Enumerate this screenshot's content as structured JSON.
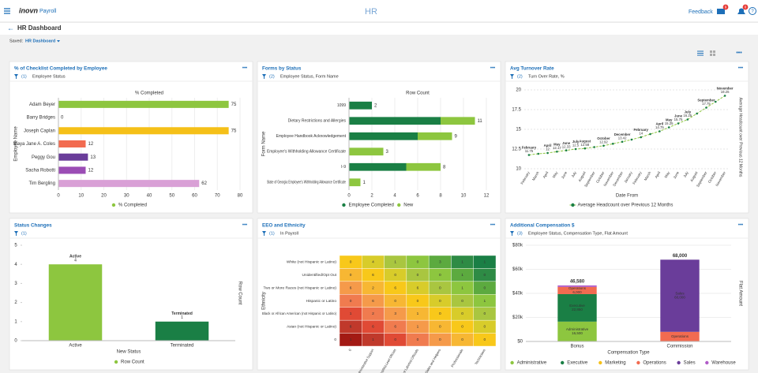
{
  "header": {
    "logo": "inovn",
    "product": "Payroll",
    "title": "HR",
    "feedback": "Feedback",
    "mail_badge": 9,
    "alert_badge": 0
  },
  "page": {
    "title": "HR Dashboard",
    "saved_label": "Saved:",
    "saved_value": "HR Dashboard"
  },
  "chart_data": [
    {
      "type": "hbar",
      "title": "% of Checklist Completed by Employee",
      "filter_count": "(1)",
      "filter": "Employee Status",
      "x_label": "% Completed",
      "y_label": "Employee Name",
      "series_name": "% Completed",
      "legend_color": "#8dc63f",
      "categories": [
        "Adam Beyer",
        "Barry Bridges",
        "Joseph Caplan",
        "Maya Jane A. Coles",
        "Peggy Gou",
        "Sacha Robotti",
        "Tim Bergling"
      ],
      "values": [
        75,
        0,
        75,
        12,
        13,
        12,
        62
      ],
      "colors": [
        "#8dc63f",
        "#8dc63f",
        "#f5c018",
        "#f26b50",
        "#6a3d9a",
        "#9b4db5",
        "#d9a0d6"
      ],
      "xlim": [
        0,
        80
      ],
      "xticks": [
        0,
        10,
        20,
        30,
        40,
        50,
        60,
        70,
        80
      ]
    },
    {
      "type": "hbar_stacked",
      "title": "Forms by Status",
      "filter_count": "(2)",
      "filter": "Employee Status, Form Name",
      "x_label": "Row Count",
      "y_label": "Form Name",
      "categories": [
        "1099",
        "Dietary Restrictions and Allergies",
        "Employee Handbook Acknowledgement",
        "Employee's Withholding Allowance Certificate",
        "I-9",
        "State of Georgia Employee's Withholding Allowance Certificate"
      ],
      "series": [
        {
          "name": "Employee Completed",
          "color": "#1a7f45",
          "values": [
            2,
            8,
            6,
            0,
            5,
            0
          ]
        },
        {
          "name": "New",
          "color": "#8dc63f",
          "values": [
            0,
            3,
            3,
            3,
            3,
            1
          ]
        }
      ],
      "totals": [
        2,
        11,
        9,
        3,
        8,
        1
      ],
      "xlim": [
        0,
        12
      ],
      "xticks": [
        0,
        2,
        4,
        6,
        8,
        10,
        12
      ]
    },
    {
      "type": "line",
      "title": "Avg Turnover Rate",
      "filter_count": "(2)",
      "filter": "Turn Over Rate, %",
      "x_label": "Date From",
      "y_label": "Average Headcount over Previous 12 Months",
      "categories": [
        "February",
        "March",
        "April",
        "May",
        "June",
        "July",
        "August",
        "September",
        "October",
        "November",
        "December",
        "January",
        "February",
        "March",
        "April",
        "May",
        "June",
        "July",
        "August",
        "September",
        "October",
        "November"
      ],
      "series": [
        {
          "name": "Average Headcount over Previous 12 Months",
          "color": "#8dc63f",
          "marker_color": "#1a7f45",
          "values": [
            11.75,
            11.9,
            12,
            12.17,
            12.33,
            12.5,
            12.58,
            12.75,
            12.92,
            13.17,
            13.42,
            13.7,
            14,
            14.4,
            14.75,
            15.25,
            15.75,
            16.25,
            17,
            17.75,
            18.5,
            19.26
          ],
          "value_labels": [
            "11.75",
            null,
            "12",
            "12.17",
            "12.33",
            "12.5",
            "12.58",
            null,
            "12.92",
            null,
            "13.42",
            null,
            "14",
            null,
            "14.75",
            "15.25",
            "15.75",
            "16.25",
            null,
            "17.75",
            null,
            "19.26"
          ]
        }
      ],
      "ylim": [
        10,
        20
      ],
      "yticks": [
        10,
        12.5,
        15,
        17.5,
        20
      ]
    },
    {
      "type": "bar",
      "title": "Status Changes",
      "filter_count": "(1)",
      "x_label": "New Status",
      "y_label": "Row Count",
      "series_name": "Row Count",
      "legend_color": "#8dc63f",
      "categories": [
        "Active",
        "Terminated"
      ],
      "values": [
        4,
        1
      ],
      "colors": [
        "#8dc63f",
        "#1a7f45"
      ],
      "ylim": [
        0,
        5
      ],
      "yticks": [
        0,
        1,
        2,
        3,
        4,
        5
      ]
    },
    {
      "type": "heatmap",
      "title": "EEO and Ethnicity",
      "filter_count": "(1)",
      "filter": "In Payroll",
      "y_label": "Ethnicity",
      "rows": [
        "White (not Hispanic or Latino)",
        "Unidentified/Opt Out",
        "Two or More Races (not Hispanic or Latino)",
        "Hispanic or Latino",
        "Black or African American (not Hispanic or Latino)",
        "Asian (not Hispanic or Latino)",
        "0"
      ],
      "columns": [
        "0",
        "Administrative Support",
        "First/Mid-Level Officials",
        "Not Labeled Officials",
        "Sales and Helpers",
        "Professionals",
        "Technicians"
      ],
      "values": [
        [
          0,
          4,
          1,
          0,
          3,
          1,
          1
        ],
        [
          0,
          6,
          0,
          0,
          0,
          1,
          0
        ],
        [
          6,
          2,
          6,
          6,
          0,
          1,
          0
        ],
        [
          0,
          6,
          0,
          0,
          0,
          0,
          1
        ],
        [
          1,
          2,
          3,
          1,
          0,
          0,
          0
        ],
        [
          6,
          6,
          6,
          1,
          0,
          0,
          0
        ],
        [
          1,
          1,
          0,
          0,
          0,
          0,
          0
        ]
      ]
    },
    {
      "type": "bar_stacked",
      "title": "Additional Compensation $",
      "filter_count": "(3)",
      "filter": "Employee Status, Compensation Type, Flat Amount",
      "x_label": "Compensation Type",
      "y_label": "Flat Amount",
      "categories": [
        "Bonus",
        "Commission"
      ],
      "series": [
        {
          "name": "Administrative",
          "color": "#8dc63f",
          "values": [
            16500,
            0
          ],
          "value_labels": [
            "16,500",
            null
          ]
        },
        {
          "name": "Executive",
          "color": "#1a7f45",
          "values": [
            22850,
            0
          ],
          "value_labels": [
            "22,850",
            null
          ]
        },
        {
          "name": "Marketing",
          "color": "#f5c018",
          "values": [
            0,
            0
          ],
          "value_labels": [
            null,
            null
          ]
        },
        {
          "name": "Operations",
          "color": "#f26b50",
          "values": [
            6000,
            8000
          ],
          "value_labels": [
            "6,000",
            null
          ]
        },
        {
          "name": "Sales",
          "color": "#6a3d9a",
          "values": [
            0,
            60000
          ],
          "value_labels": [
            null,
            "60,000"
          ]
        },
        {
          "name": "Warehouse",
          "color": "#b05cc8",
          "values": [
            1230,
            0
          ],
          "value_labels": [
            null,
            null
          ]
        }
      ],
      "totals": [
        {
          "value": 46580,
          "label": "46,580"
        },
        {
          "value": 68000,
          "label": "68,000"
        }
      ],
      "ylim": [
        0,
        80000
      ],
      "yticks": [
        {
          "value": 0,
          "label": "$0"
        },
        {
          "value": 20000,
          "label": "$20k"
        },
        {
          "value": 40000,
          "label": "$40k"
        },
        {
          "value": 60000,
          "label": "$60k"
        },
        {
          "value": 80000,
          "label": "$80k"
        }
      ]
    }
  ]
}
